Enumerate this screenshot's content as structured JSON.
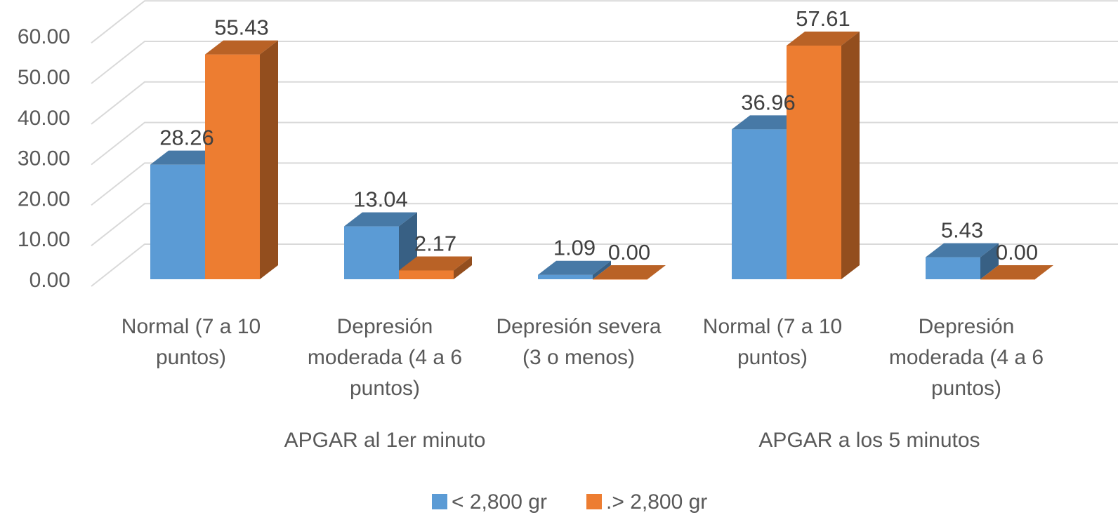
{
  "chart_data": {
    "type": "bar",
    "style": "3d-clustered-column",
    "yticks": [
      "0.00",
      "10.00",
      "20.00",
      "30.00",
      "40.00",
      "50.00",
      "60.00"
    ],
    "ylim": [
      0,
      67
    ],
    "grid": true,
    "legend_position": "bottom",
    "groups": [
      {
        "label": "APGAR al 1er minuto",
        "categories": [
          [
            "Normal (7 a 10",
            "puntos)"
          ],
          [
            "Depresión",
            "moderada (4 a 6",
            "puntos)"
          ],
          [
            "Depresión severa",
            "(3 o menos)"
          ]
        ]
      },
      {
        "label": "APGAR a los 5 minutos",
        "categories": [
          [
            "Normal (7 a 10",
            "puntos)"
          ],
          [
            "Depresión",
            "moderada (4 a 6",
            "puntos)"
          ]
        ]
      }
    ],
    "series": [
      {
        "name": "< 2,800 gr",
        "color": "#5B9BD5",
        "values": [
          28.26,
          13.04,
          1.09,
          36.96,
          5.43
        ],
        "labels": [
          "28.26",
          "13.04",
          "1.09",
          "36.96",
          "5.43"
        ]
      },
      {
        "name": ".> 2,800 gr",
        "color": "#ED7D31",
        "values": [
          55.43,
          2.17,
          0.0,
          57.61,
          0.0
        ],
        "labels": [
          "55.43",
          "2.17",
          "0.00",
          "57.61",
          "0.00"
        ]
      }
    ]
  }
}
